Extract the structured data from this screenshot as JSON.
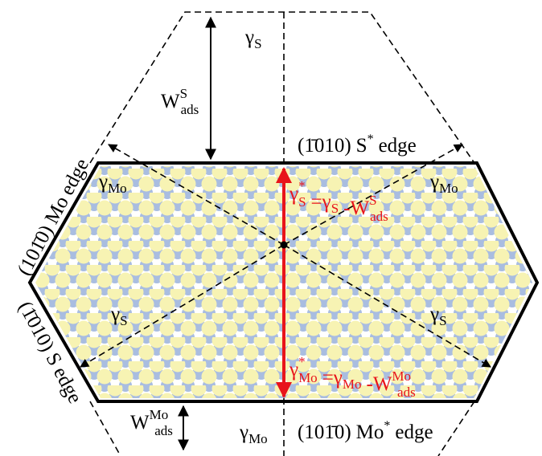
{
  "labels": {
    "gamma_s_top": {
      "symbol": "γ",
      "subscript": "S"
    },
    "w_s_ads": {
      "symbol": "W",
      "superscript": "S",
      "subscript": "ads"
    },
    "gamma_mo_left": {
      "symbol": "γ",
      "subscript": "Mo"
    },
    "gamma_mo_right": {
      "symbol": "γ",
      "subscript": "Mo"
    },
    "gamma_s_left": {
      "symbol": "γ",
      "subscript": "S"
    },
    "gamma_s_right": {
      "symbol": "γ",
      "subscript": "S"
    },
    "w_mo_ads": {
      "symbol": "W",
      "superscript": "Mo",
      "subscript": "ads"
    },
    "gamma_mo_bottom": {
      "symbol": "γ",
      "subscript": "Mo"
    }
  },
  "edges": {
    "top": {
      "miller": "(1̄010)",
      "element": "S",
      "superscript": "*",
      "word": "edge"
    },
    "bottom": {
      "miller": "(101̄0)",
      "element": "Mo",
      "superscript": "*",
      "word": "edge"
    },
    "upper_left": {
      "miller": "(101̄0)",
      "element": "Mo",
      "word": "edge"
    },
    "lower_left": {
      "miller": "(1̄010)",
      "element": "S",
      "word": "edge"
    }
  },
  "equations": {
    "s": {
      "lhs": {
        "symbol": "γ",
        "superscript": "*",
        "subscript": "S"
      },
      "equals": "=",
      "first": {
        "symbol": "γ",
        "subscript": "S"
      },
      "minus": "-",
      "second": {
        "symbol": "W",
        "superscript": "S",
        "subscript": "ads"
      }
    },
    "mo": {
      "lhs": {
        "symbol": "γ",
        "superscript": "*",
        "subscript": "Mo"
      },
      "equals": "=",
      "first": {
        "symbol": "γ",
        "subscript": "Mo"
      },
      "minus": "-",
      "second": {
        "symbol": "W",
        "superscript": "Mo",
        "subscript": "ads"
      }
    }
  }
}
